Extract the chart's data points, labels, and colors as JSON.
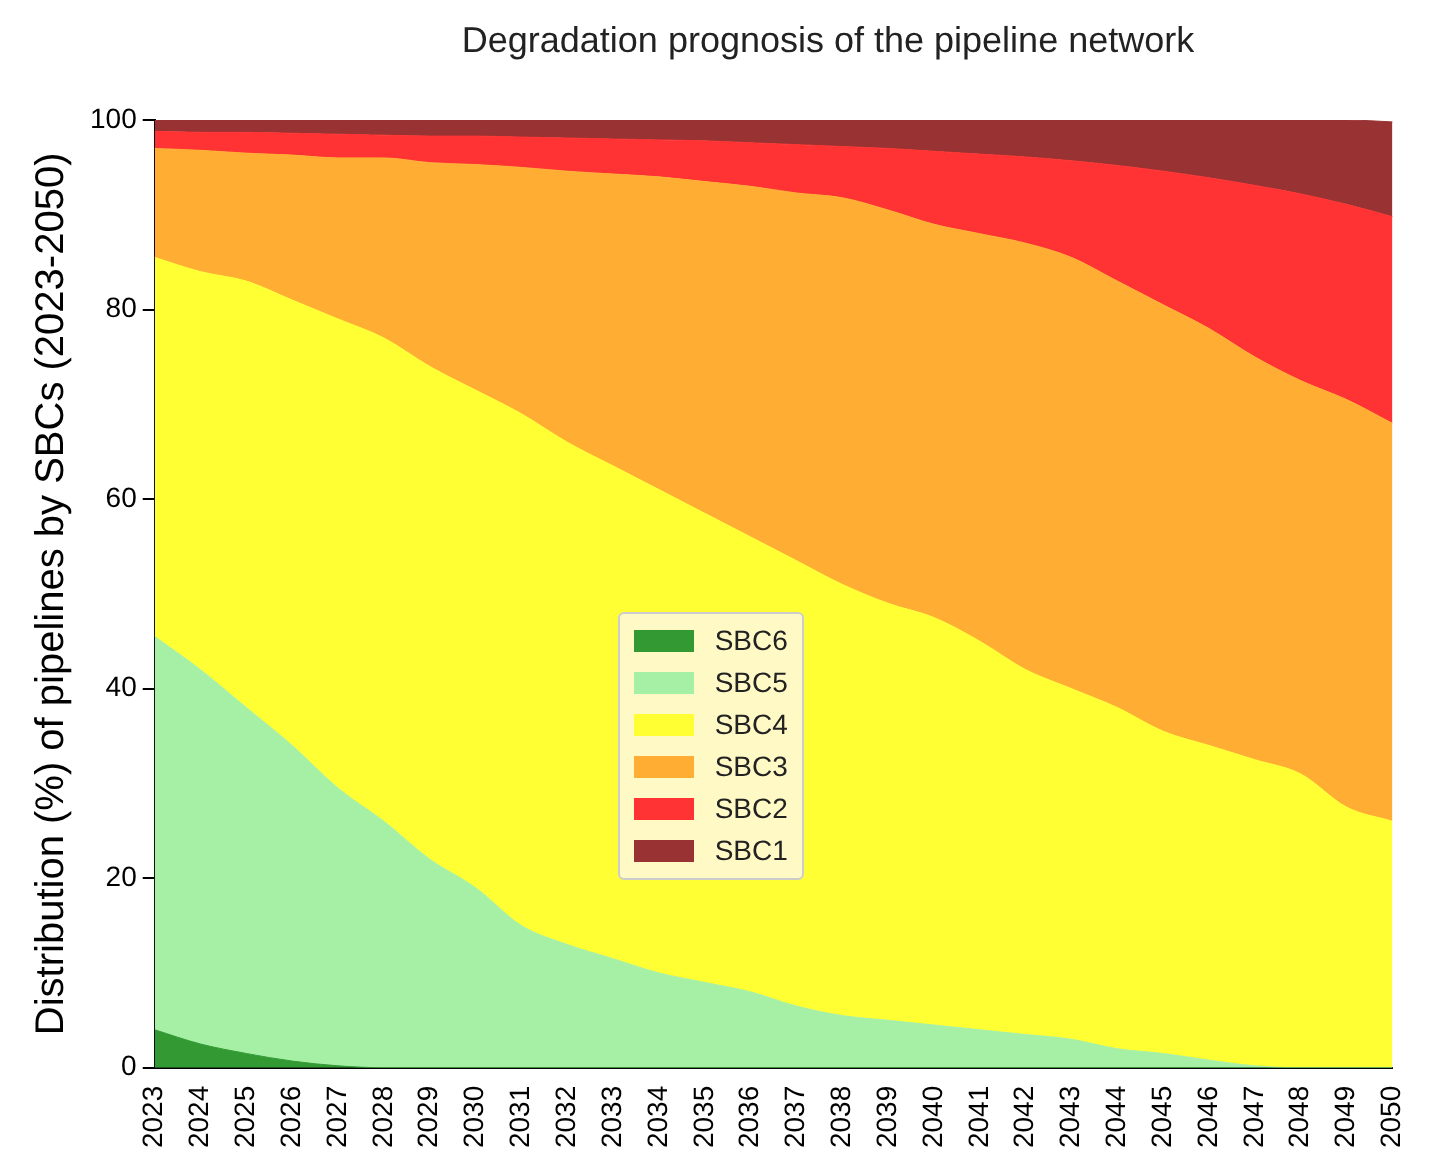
{
  "chart_data": {
    "type": "area",
    "title": "Degradation prognosis of the pipeline network",
    "ylabel": "Distribution (%) of pipelines by SBCs (2023-2050)",
    "categories": [
      "2023",
      "2024",
      "2025",
      "2026",
      "2027",
      "2028",
      "2029",
      "2030",
      "2031",
      "2032",
      "2033",
      "2034",
      "2035",
      "2036",
      "2037",
      "2038",
      "2039",
      "2040",
      "2041",
      "2042",
      "2043",
      "2044",
      "2045",
      "2046",
      "2047",
      "2048",
      "2049",
      "2050"
    ],
    "stacked": true,
    "ylim": [
      0,
      100
    ],
    "yticks": [
      0,
      20,
      40,
      60,
      80,
      100
    ],
    "grid": false,
    "legend": "center",
    "series": [
      {
        "name": "SBC6",
        "color": "#339933",
        "values": [
          4,
          2.5,
          1.5,
          0.7,
          0.2,
          0,
          0,
          0,
          0,
          0,
          0,
          0,
          0,
          0,
          0,
          0,
          0,
          0,
          0,
          0,
          0,
          0,
          0,
          0,
          0,
          0,
          0,
          0
        ]
      },
      {
        "name": "SBC5",
        "color": "#a6f0a6",
        "values": [
          41.5,
          39.5,
          36.5,
          33.3,
          29.3,
          26,
          22,
          19,
          15,
          13,
          11.5,
          10,
          9,
          8,
          6.5,
          5.5,
          5,
          4.5,
          4,
          3.5,
          3,
          2,
          1.5,
          0.8,
          0.2,
          0,
          0,
          0
        ]
      },
      {
        "name": "SBC4",
        "color": "#ffff33",
        "values": [
          40,
          42,
          45,
          47,
          49.5,
          51,
          52,
          52.5,
          54,
          53,
          52,
          51,
          49.5,
          48,
          47,
          45.5,
          44,
          43,
          41,
          38.5,
          37,
          36,
          34,
          33.2,
          32.3,
          31,
          27.5,
          26
        ]
      },
      {
        "name": "SBC3",
        "color": "#ffad33",
        "values": [
          11.5,
          12.8,
          13.5,
          15.3,
          17,
          19,
          21.5,
          23.8,
          26,
          28.6,
          30.8,
          33,
          35,
          37,
          38.8,
          40.8,
          41.5,
          41.5,
          43,
          45,
          45.5,
          45,
          45,
          44,
          42.5,
          41.5,
          43,
          42
        ]
      },
      {
        "name": "SBC2",
        "color": "#ff3333",
        "values": [
          1.8,
          1.9,
          2.2,
          2.3,
          2.5,
          2.4,
          2.8,
          3,
          3.2,
          3.5,
          3.7,
          3.9,
          4.3,
          4.6,
          5.1,
          5.4,
          6.5,
          7.7,
          8.4,
          9.1,
          10.2,
          12.2,
          14.1,
          15.9,
          18.1,
          19.7,
          20.6,
          21.8
        ]
      },
      {
        "name": "SBC1",
        "color": "#993333",
        "values": [
          1.2,
          1.3,
          1.3,
          1.4,
          1.5,
          1.6,
          1.7,
          1.7,
          1.8,
          1.9,
          2,
          2.1,
          2.2,
          2.4,
          2.6,
          2.8,
          3,
          3.3,
          3.6,
          3.9,
          4.3,
          4.8,
          5.4,
          6.1,
          6.9,
          7.8,
          8.9,
          10
        ]
      }
    ]
  }
}
